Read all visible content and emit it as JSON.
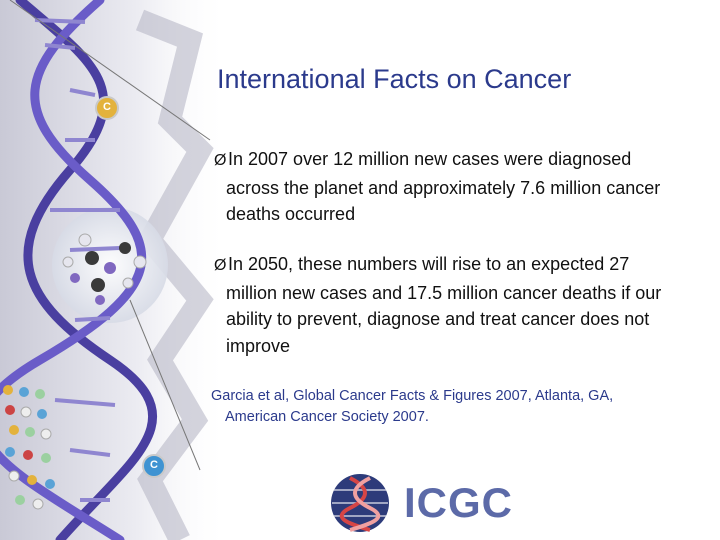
{
  "slide": {
    "title": "International Facts on Cancer",
    "bullets": [
      {
        "line1": "In 2007 over 12 million new cases were diagnosed",
        "line2": "across the planet and approximately 7.6 million cancer",
        "line3": "deaths occurred"
      },
      {
        "line1": "In 2050, these numbers will rise to an expected 27",
        "line2": "million new cases and 17.5 million cancer deaths if our",
        "line3": "ability to prevent, diagnose and treat cancer does not",
        "line4": "improve"
      }
    ],
    "bullet_marker": "Ø",
    "citation": {
      "line1": "Garcia et al, Global Cancer Facts & Figures 2007, Atlanta, GA,",
      "line2": "American Cancer Society 2007."
    },
    "logo": {
      "text": "ICGC"
    },
    "dna_labels": {
      "c1": "C",
      "c2": "C"
    }
  },
  "colors": {
    "title": "#2b3a8c",
    "helix": "#5a4fb0",
    "logo": "#5c6aa8"
  }
}
